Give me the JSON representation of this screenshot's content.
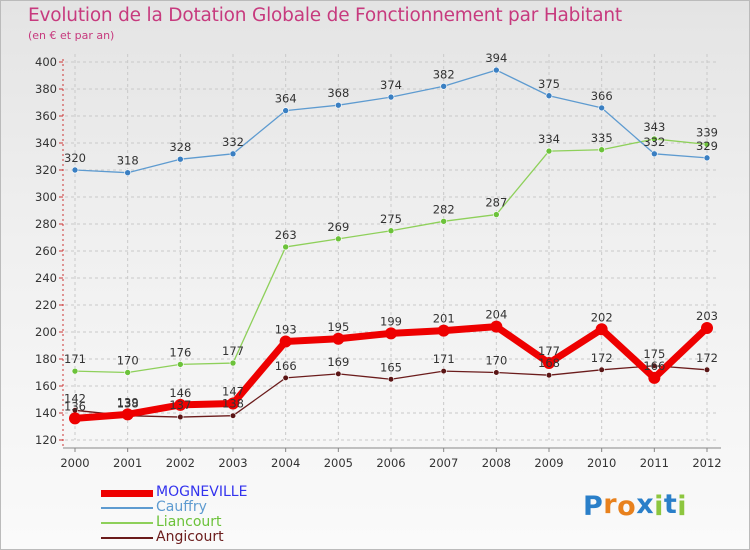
{
  "title": "Evolution de la Dotation Globale de Fonctionnement par Habitant",
  "subtitle": "(en € et par an)",
  "logo": {
    "text": "Proxiti",
    "letters": [
      "P",
      "r",
      "o",
      "x",
      "i",
      "t",
      "i"
    ],
    "colors": [
      "#2a7fc9",
      "#e8811d",
      "#e8811d",
      "#2a7fc9",
      "#8dc63f",
      "#2a7fc9",
      "#8dc63f"
    ]
  },
  "chart_data": {
    "type": "line",
    "title": "Evolution de la Dotation Globale de Fonctionnement par Habitant",
    "subtitle": "(en € et par an)",
    "xlabel": "",
    "ylabel": "",
    "x": [
      "2000",
      "2001",
      "2002",
      "2003",
      "2004",
      "2005",
      "2006",
      "2007",
      "2008",
      "2009",
      "2010",
      "2011",
      "2012"
    ],
    "ylim": [
      120,
      400
    ],
    "yticks": [
      120,
      140,
      160,
      180,
      200,
      220,
      240,
      260,
      280,
      300,
      320,
      340,
      360,
      380,
      400
    ],
    "grid": true,
    "legend_position": "bottom-left",
    "series": [
      {
        "name": "Angicourt",
        "color": "#6b1c1c",
        "marker": "#5a1515",
        "width": 1.3,
        "dot": 2.8,
        "values": [
          142,
          138,
          137,
          138,
          166,
          169,
          165,
          171,
          170,
          168,
          172,
          175,
          172
        ]
      },
      {
        "name": "Liancourt",
        "color": "#8ed05a",
        "marker": "#6cc23a",
        "width": 1.3,
        "dot": 3,
        "values": [
          171,
          170,
          176,
          177,
          263,
          269,
          275,
          282,
          287,
          334,
          335,
          343,
          339
        ]
      },
      {
        "name": "Cauffry",
        "color": "#5e9bd0",
        "marker": "#3a7fc2",
        "width": 1.3,
        "dot": 3,
        "values": [
          320,
          318,
          328,
          332,
          364,
          368,
          374,
          382,
          394,
          375,
          366,
          332,
          329
        ]
      },
      {
        "name": "MOGNEVILLE",
        "color": "#ee0000",
        "marker": "#ee0000",
        "width": 7,
        "dot": 6,
        "values": [
          136,
          139,
          146,
          147,
          193,
          195,
          199,
          201,
          204,
          177,
          202,
          166,
          203
        ]
      }
    ],
    "legend": [
      {
        "name": "MOGNEVILLE",
        "color": "#ee0000",
        "text_color": "#3333ee",
        "thickness": 7
      },
      {
        "name": "Cauffry",
        "color": "#5e9bd0",
        "text_color": "#5e9bd0",
        "thickness": 2
      },
      {
        "name": "Liancourt",
        "color": "#8ed05a",
        "text_color": "#6cc23a",
        "thickness": 2
      },
      {
        "name": "Angicourt",
        "color": "#6b1c1c",
        "text_color": "#6b1c1c",
        "thickness": 2
      }
    ]
  }
}
